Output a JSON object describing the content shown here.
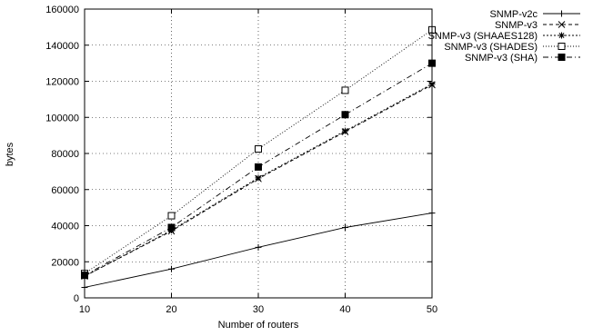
{
  "chart_data": {
    "type": "line",
    "xlabel": "Number of routers",
    "ylabel": "bytes",
    "x": [
      10,
      20,
      30,
      40,
      50
    ],
    "x_ticks": [
      "10",
      "20",
      "30",
      "40",
      "50"
    ],
    "y_ticks": [
      "0",
      "20000",
      "40000",
      "60000",
      "80000",
      "100000",
      "120000",
      "140000",
      "160000"
    ],
    "xlim": [
      10,
      50
    ],
    "ylim": [
      0,
      160000
    ],
    "grid": true,
    "legend_position": "top-right",
    "series": [
      {
        "name": "SNMP-v2c",
        "marker": "plus",
        "dash": "solid",
        "values": [
          5800,
          16000,
          28000,
          39000,
          47000
        ]
      },
      {
        "name": "SNMP-v3",
        "marker": "cross",
        "dash": "dashed",
        "values": [
          12000,
          37000,
          66000,
          92000,
          118000
        ]
      },
      {
        "name": "SNMP-v3 (SHAAES128)",
        "marker": "star",
        "dash": "dotted",
        "values": [
          12000,
          37500,
          66500,
          92500,
          118500
        ]
      },
      {
        "name": "SNMP-v3 (SHADES)",
        "marker": "open-square",
        "dash": "fine-dotted",
        "values": [
          13500,
          45500,
          82500,
          115000,
          148500
        ]
      },
      {
        "name": "SNMP-v3 (SHA)",
        "marker": "filled-square",
        "dash": "dash-dot",
        "values": [
          12500,
          39000,
          72500,
          101500,
          130000
        ]
      }
    ]
  }
}
